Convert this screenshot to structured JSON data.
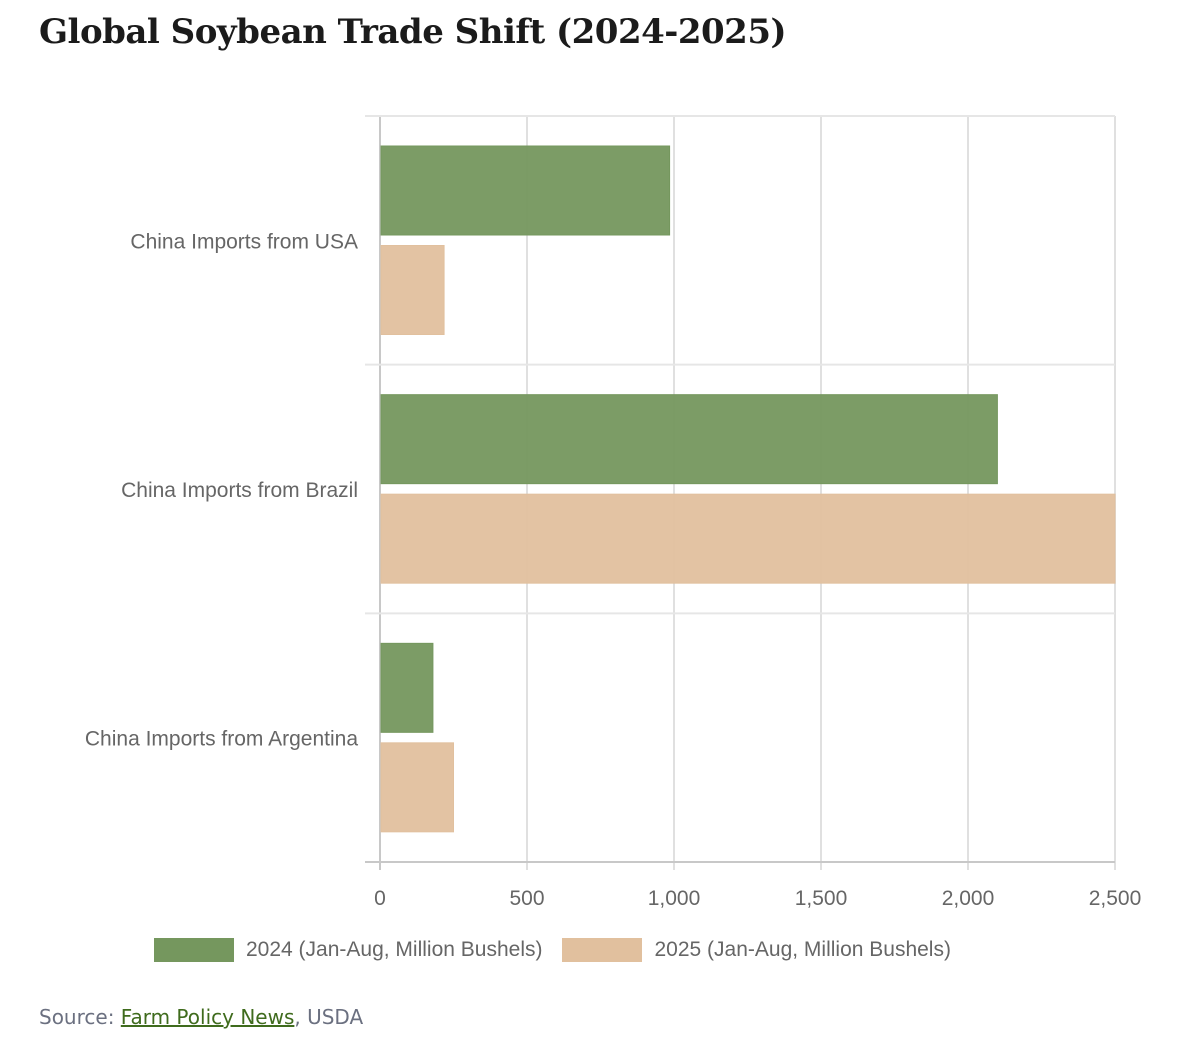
{
  "title": "Global Soybean Trade Shift (2024-2025)",
  "source": {
    "prefix": "Source: ",
    "link_text": "Farm Policy News",
    "suffix": ", USDA"
  },
  "chart_data": {
    "type": "bar",
    "orientation": "horizontal",
    "categories": [
      "China Imports from USA",
      "China Imports from Brazil",
      "China Imports from Argentina"
    ],
    "series": [
      {
        "name": "2024 (Jan-Aug, Million Bushels)",
        "color": "#75975e",
        "values": [
          985,
          2100,
          180
        ]
      },
      {
        "name": "2025 (Jan-Aug, Million Bushels)",
        "color": "#e1c09e",
        "values": [
          218,
          2500,
          250
        ]
      }
    ],
    "xlim": [
      0,
      2500
    ],
    "xticks": [
      "0",
      "500",
      "1,000",
      "1,500",
      "2,000",
      "2,500"
    ],
    "grid": true,
    "legend": "bottom"
  }
}
